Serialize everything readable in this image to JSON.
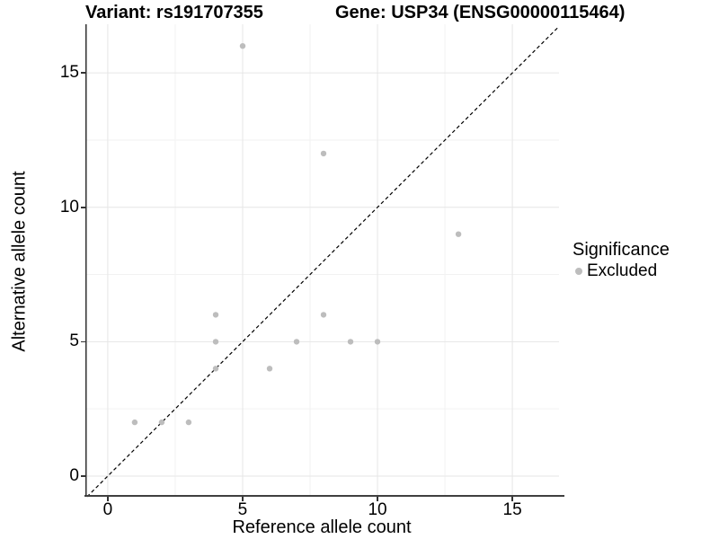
{
  "title": {
    "variant": "Variant: rs191707355",
    "gene": "Gene: USP34 (ENSG00000115464)"
  },
  "chart_data": {
    "type": "scatter",
    "title": "Variant: rs191707355 — Gene: USP34 (ENSG00000115464)",
    "xlabel": "Reference allele count",
    "ylabel": "Alternative allele count",
    "x_ticks": [
      0,
      5,
      10,
      15
    ],
    "y_ticks": [
      0,
      5,
      10,
      15
    ],
    "x_minor_ticks": [
      2.5,
      7.5,
      12.5
    ],
    "y_minor_ticks": [
      2.5,
      7.5,
      12.5
    ],
    "x_domain": [
      -0.83,
      16.73
    ],
    "y_domain": [
      -0.77,
      16.81
    ],
    "grid": true,
    "identity_line": {
      "style": "dashed",
      "slope": 1,
      "intercept": 0
    },
    "series": [
      {
        "name": "Excluded",
        "color": "#bdbdbd",
        "points": [
          [
            1,
            2
          ],
          [
            2,
            2
          ],
          [
            3,
            2
          ],
          [
            4,
            4
          ],
          [
            4,
            5
          ],
          [
            4,
            6
          ],
          [
            5,
            16
          ],
          [
            6,
            4
          ],
          [
            7,
            5
          ],
          [
            8,
            6
          ],
          [
            8,
            12
          ],
          [
            9,
            5
          ],
          [
            10,
            5
          ],
          [
            13,
            9
          ]
        ]
      }
    ],
    "legend": {
      "title": "Significance",
      "position": "right",
      "items": [
        {
          "label": "Excluded",
          "color": "#bdbdbd"
        }
      ]
    }
  },
  "colors": {
    "background": "#ffffff",
    "grid_major": "#e6e6e6",
    "grid_minor": "#f2f2f2",
    "axis_spine_left": "#303030",
    "axis_spine_bottom": "#404040",
    "tick_mark": "#333333",
    "text": "#000000",
    "identity_line": "#000000",
    "point": "#bdbdbd"
  }
}
